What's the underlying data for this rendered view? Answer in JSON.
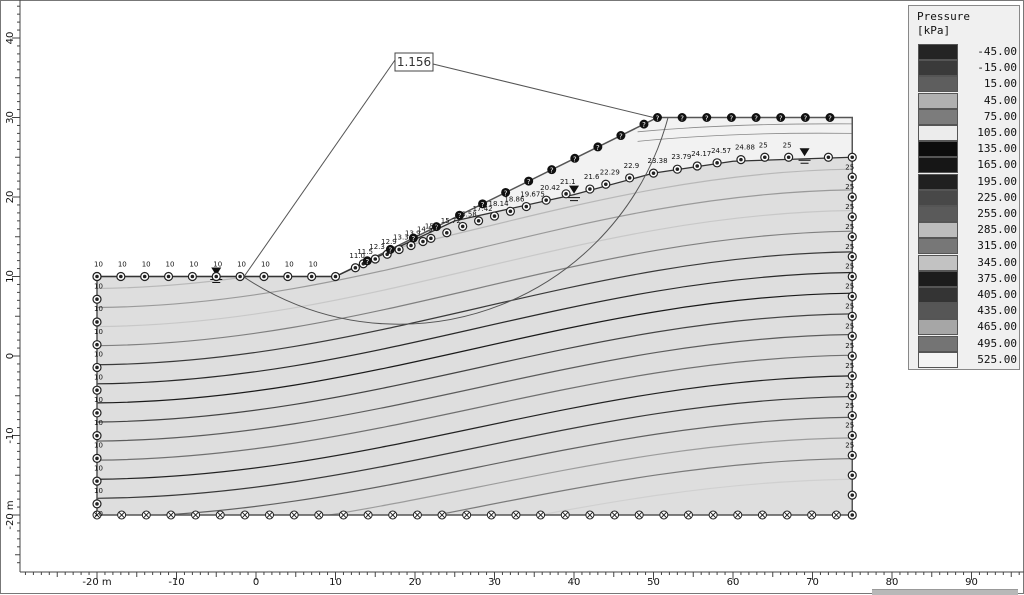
{
  "legend": {
    "title": "Pressure",
    "unit": "[kPa]",
    "entries": [
      {
        "value": "-45.00",
        "color": "#242424"
      },
      {
        "value": "-15.00",
        "color": "#3a3a3a"
      },
      {
        "value": "15.00",
        "color": "#5e5e5e"
      },
      {
        "value": "45.00",
        "color": "#b0b0b0"
      },
      {
        "value": "75.00",
        "color": "#7c7c7c"
      },
      {
        "value": "105.00",
        "color": "#ececec"
      },
      {
        "value": "135.00",
        "color": "#0c0c0c"
      },
      {
        "value": "165.00",
        "color": "#161616"
      },
      {
        "value": "195.00",
        "color": "#202020"
      },
      {
        "value": "225.00",
        "color": "#484848"
      },
      {
        "value": "255.00",
        "color": "#5a5a5a"
      },
      {
        "value": "285.00",
        "color": "#bcbcbc"
      },
      {
        "value": "315.00",
        "color": "#777777"
      },
      {
        "value": "345.00",
        "color": "#c2c2c2"
      },
      {
        "value": "375.00",
        "color": "#1c1c1c"
      },
      {
        "value": "405.00",
        "color": "#343434"
      },
      {
        "value": "435.00",
        "color": "#565656"
      },
      {
        "value": "465.00",
        "color": "#a6a6a6"
      },
      {
        "value": "495.00",
        "color": "#747474"
      },
      {
        "value": "525.00",
        "color": "#f4f4f4"
      }
    ]
  },
  "x_axis": {
    "ticks": [
      "-20 m",
      "-10",
      "0",
      "10",
      "20",
      "30",
      "40",
      "50",
      "60",
      "70",
      "80",
      "90"
    ],
    "values": [
      -20,
      -10,
      0,
      10,
      20,
      30,
      40,
      50,
      60,
      70,
      80,
      90
    ]
  },
  "y_axis": {
    "ticks": [
      "40",
      "30",
      "20",
      "10",
      "0",
      "-10",
      "-20 m"
    ],
    "values": [
      40,
      30,
      20,
      10,
      0,
      -10,
      -20
    ]
  },
  "factor_of_safety": "1.156",
  "model": {
    "ground_surface": [
      [
        -20,
        10
      ],
      [
        10,
        10
      ],
      [
        50.5,
        30
      ],
      [
        75,
        30
      ]
    ],
    "water_table": [
      [
        -20,
        10
      ],
      [
        10,
        10
      ],
      [
        25,
        17
      ],
      [
        40,
        20.3
      ],
      [
        50,
        23
      ],
      [
        60,
        24.5
      ],
      [
        75,
        25
      ]
    ],
    "bottom_level": -20,
    "slip_circle": {
      "center": [
        18,
        39
      ],
      "radius": 35
    },
    "colors": {
      "soil": "#dedede",
      "unsaturated": "#f2f2f2",
      "background": "#ffffff",
      "boundary": "#555555"
    }
  },
  "head_labels": {
    "left": "10",
    "right": "25",
    "top_row": [
      "10",
      "10",
      "10",
      "10",
      "10",
      "10",
      "10",
      "10",
      "10",
      "10"
    ],
    "slope": [
      "11.0",
      "11.5",
      "12.3",
      "12.9",
      "13.3",
      "13.9",
      "14.5",
      "15.0",
      "15.72",
      "16.58",
      "17.42",
      "18.14",
      "18.86",
      "19.675",
      "20.42",
      "21.1",
      "21.6",
      "22.29",
      "22.9",
      "23.38",
      "23.79",
      "24.17",
      "24.57",
      "24.88",
      "25",
      "25"
    ]
  }
}
